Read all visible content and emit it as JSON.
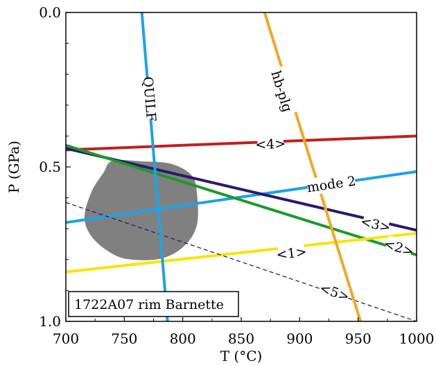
{
  "chart_data": {
    "type": "line",
    "xlabel": "T (°C)",
    "ylabel": "P (GPa)",
    "xlim": [
      700,
      1000
    ],
    "ylim": [
      0.0,
      1.0
    ],
    "y_inverted": true,
    "grid": false,
    "x_ticks": [
      700,
      750,
      800,
      850,
      900,
      950,
      1000
    ],
    "x_tick_labels": [
      "700",
      "750",
      "800",
      "850",
      "900",
      "950",
      "1000"
    ],
    "y_ticks": [
      0.0,
      0.5,
      1.0
    ],
    "y_tick_labels": [
      "0.0",
      "0.5",
      "1.0"
    ],
    "annotation_box": "1722A07 rim Barnette",
    "series": [
      {
        "name": "<4>",
        "color": "#c0201e",
        "style": "solid",
        "x": [
          700,
          1000
        ],
        "y": [
          0.445,
          0.4
        ],
        "label_at": [
          875,
          0.425
        ]
      },
      {
        "name": "mode 2",
        "color": "#1aa3e8",
        "style": "solid",
        "x": [
          700,
          1000
        ],
        "y": [
          0.68,
          0.515
        ],
        "label_at": [
          927,
          0.555
        ]
      },
      {
        "name": "<3>",
        "color": "#2a1a6e",
        "style": "solid",
        "x": [
          700,
          1000
        ],
        "y": [
          0.44,
          0.705
        ],
        "label_at": [
          965,
          0.685
        ]
      },
      {
        "name": "<2>",
        "color": "#1a9a2a",
        "style": "solid",
        "x": [
          700,
          1000
        ],
        "y": [
          0.43,
          0.785
        ],
        "label_at": [
          985,
          0.76
        ]
      },
      {
        "name": "<1>",
        "color": "#f5e600",
        "style": "solid",
        "x": [
          700,
          1000
        ],
        "y": [
          0.84,
          0.715
        ],
        "label_at": [
          893,
          0.778
        ]
      },
      {
        "name": "<5>",
        "color": "#2a1a6e",
        "style": "dashed",
        "x": [
          700,
          1000
        ],
        "y": [
          0.615,
          1.0
        ],
        "label_at": [
          930,
          0.905
        ]
      },
      {
        "name": "QUILF",
        "color": "#1aa3e8",
        "style": "solid",
        "x": [
          765,
          787
        ],
        "y": [
          0.0,
          1.0
        ],
        "label_at": [
          772,
          0.28
        ]
      },
      {
        "name": "hb-plg",
        "color": "#f5a623",
        "style": "solid",
        "x": [
          870,
          952
        ],
        "y": [
          0.0,
          1.0
        ],
        "label_at": [
          885,
          0.255
        ]
      }
    ],
    "shaded_region": {
      "color": "#808080",
      "points": [
        [
          740,
          0.48
        ],
        [
          765,
          0.482
        ],
        [
          790,
          0.49
        ],
        [
          807,
          0.525
        ],
        [
          812,
          0.58
        ],
        [
          812,
          0.69
        ],
        [
          800,
          0.76
        ],
        [
          780,
          0.798
        ],
        [
          752,
          0.798
        ],
        [
          735,
          0.77
        ],
        [
          721,
          0.72
        ],
        [
          716,
          0.66
        ],
        [
          722,
          0.58
        ],
        [
          732,
          0.52
        ]
      ]
    }
  }
}
